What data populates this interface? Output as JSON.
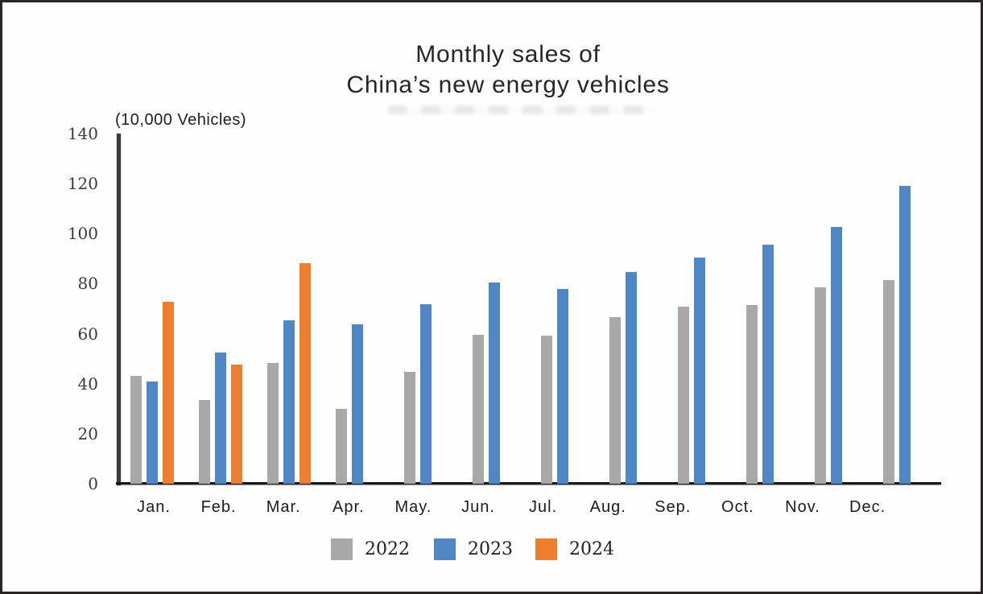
{
  "title": {
    "line1": "Monthly sales of",
    "line2": "China’s new energy vehicles"
  },
  "chart_data": {
    "type": "bar",
    "title": "Monthly sales of China’s new energy vehicles",
    "unit_label": "(10,000 Vehicles)",
    "xlabel": "",
    "ylabel": "(10,000 Vehicles)",
    "categories": [
      "Jan.",
      "Feb.",
      "Mar.",
      "Apr.",
      "May.",
      "Jun.",
      "Jul.",
      "Aug.",
      "Sep.",
      "Oct.",
      "Nov.",
      "Dec."
    ],
    "series": [
      {
        "name": "2022",
        "color": "#a8a8a8",
        "values": [
          43.1,
          33.4,
          48.4,
          29.9,
          44.7,
          59.6,
          59.3,
          66.6,
          70.8,
          71.4,
          78.6,
          81.4
        ]
      },
      {
        "name": "2023",
        "color": "#4f86c4",
        "values": [
          40.8,
          52.5,
          65.3,
          63.6,
          71.7,
          80.6,
          78.0,
          84.6,
          90.4,
          95.6,
          102.6,
          119.1
        ]
      },
      {
        "name": "2024",
        "color": "#ed7d2f",
        "values": [
          72.9,
          47.7,
          88.3,
          null,
          null,
          null,
          null,
          null,
          null,
          null,
          null,
          null
        ]
      }
    ],
    "y_axis": {
      "min": 0,
      "max": 140,
      "step": 20,
      "ticks": [
        0,
        20,
        40,
        60,
        80,
        100,
        120,
        140
      ]
    },
    "ylim": [
      0,
      140
    ],
    "grid": false,
    "legend_position": "bottom"
  }
}
